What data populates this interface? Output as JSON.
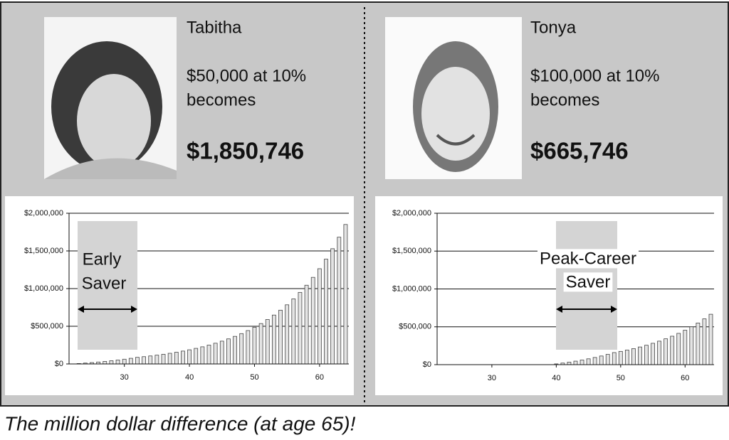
{
  "panels": [
    {
      "name": "Tabitha",
      "line1": "$50,000 at 10%",
      "line2": "becomes",
      "amount": "$1,850,746"
    },
    {
      "name": "Tonya",
      "line1": "$100,000 at 10%",
      "line2": "becomes",
      "amount": "$665,746"
    }
  ],
  "caption": "The million dollar difference (at age 65)!",
  "chart_data": [
    {
      "type": "bar",
      "annotation": [
        "Early",
        "Saver"
      ],
      "x": [
        23,
        24,
        25,
        26,
        27,
        28,
        29,
        30,
        31,
        32,
        33,
        34,
        35,
        36,
        37,
        38,
        39,
        40,
        41,
        42,
        43,
        44,
        45,
        46,
        47,
        48,
        49,
        50,
        51,
        52,
        53,
        54,
        55,
        56,
        57,
        58,
        59,
        60,
        61,
        62,
        63,
        64
      ],
      "values": [
        5500,
        11550,
        18205,
        25526,
        33578,
        42436,
        52179,
        62897,
        74687,
        87656,
        96422,
        106064,
        116670,
        128337,
        141171,
        155288,
        170817,
        187899,
        206689,
        227358,
        250094,
        275103,
        302613,
        332874,
        366161,
        402777,
        443055,
        487361,
        536097,
        589707,
        648678,
        713546,
        784901,
        863391,
        949730,
        1044703,
        1149173,
        1264090,
        1390499,
        1529549,
        1682504,
        1850746
      ],
      "color": "#e4e4e4",
      "xlim": [
        21.5,
        64.5
      ],
      "xticks": [
        30,
        40,
        50,
        60
      ],
      "ylim": [
        0,
        2000000
      ],
      "yticks": [
        {
          "value": 0,
          "label": "$0"
        },
        {
          "value": 500000,
          "label": "$500,000"
        },
        {
          "value": 1000000,
          "label": "$1,000,000"
        },
        {
          "value": 1500000,
          "label": "$1,500,000"
        },
        {
          "value": 2000000,
          "label": "$2,000,000"
        }
      ],
      "grid": true
    },
    {
      "type": "bar",
      "annotation": [
        "Peak-Career",
        "Saver"
      ],
      "x": [
        40,
        41,
        42,
        43,
        44,
        45,
        46,
        47,
        48,
        49,
        50,
        51,
        52,
        53,
        54,
        55,
        56,
        57,
        58,
        59,
        60,
        61,
        62,
        63,
        64
      ],
      "values": [
        10000,
        21000,
        33100,
        46410,
        61051,
        77156,
        94872,
        114359,
        135795,
        159374,
        175312,
        192843,
        212127,
        233340,
        256674,
        282341,
        310576,
        341633,
        375797,
        413376,
        454714,
        500185,
        550204,
        605224,
        665746
      ],
      "color": "#e4e4e4",
      "xlim": [
        21.5,
        64.5
      ],
      "xticks": [
        30,
        40,
        50,
        60
      ],
      "ylim": [
        0,
        2000000
      ],
      "yticks": [
        {
          "value": 0,
          "label": "$0"
        },
        {
          "value": 500000,
          "label": "$500,000"
        },
        {
          "value": 1000000,
          "label": "$1,000,000"
        },
        {
          "value": 1500000,
          "label": "$1,500,000"
        },
        {
          "value": 2000000,
          "label": "$2,000,000"
        }
      ],
      "grid": true
    }
  ]
}
